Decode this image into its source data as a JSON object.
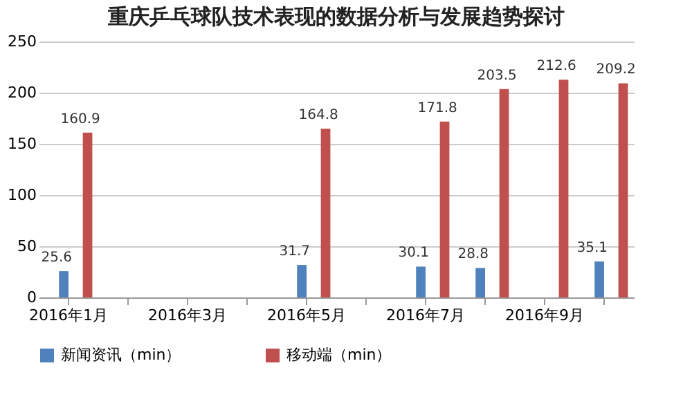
{
  "chart_data": {
    "type": "bar",
    "title": "重庆乒乓球队技术表现的数据分析与发展趋势探讨",
    "categories": [
      "2016年1月",
      null,
      "2016年3月",
      null,
      "2016年5月",
      null,
      "2016年7月",
      null,
      "2016年9月",
      null
    ],
    "series": [
      {
        "name": "新闻资讯（min）",
        "color": "#4f81bd",
        "values": [
          25.6,
          null,
          null,
          null,
          31.7,
          null,
          30.1,
          28.8,
          null,
          35.1
        ]
      },
      {
        "name": "移动端（min）",
        "color": "#c0504d",
        "values": [
          160.9,
          null,
          null,
          null,
          164.8,
          null,
          171.8,
          203.5,
          212.6,
          209.2
        ]
      }
    ],
    "ylim": [
      0,
      250
    ],
    "yticks": [
      0,
      50,
      100,
      150,
      200,
      250
    ],
    "grid": "y",
    "legend": "bottom",
    "data_labels": true
  }
}
